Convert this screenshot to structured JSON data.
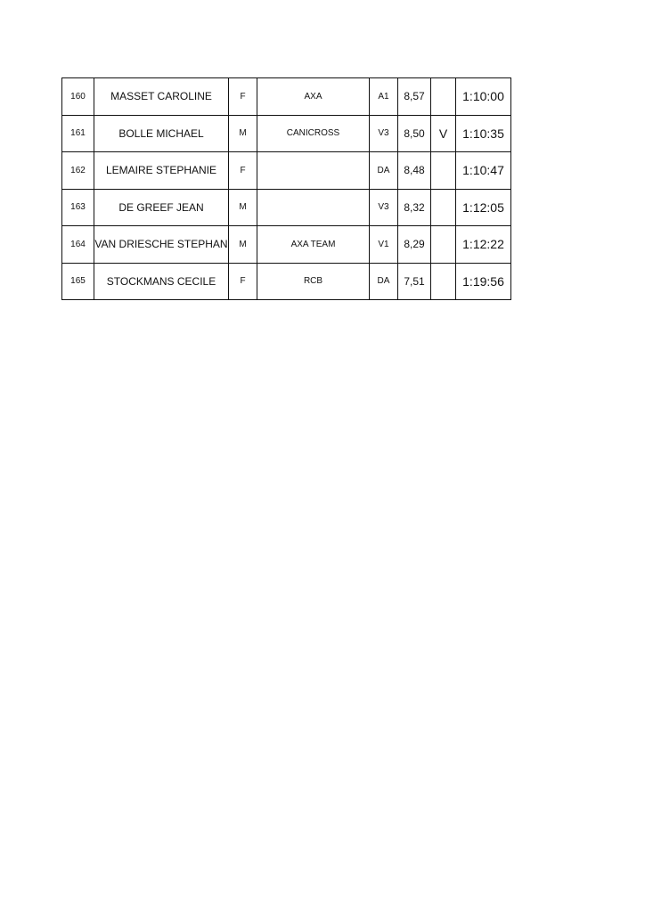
{
  "results": [
    {
      "bib": "160",
      "name": "MASSET CAROLINE",
      "sex": "F",
      "club": "AXA",
      "category": "A1",
      "speed": "8,57",
      "mark": "",
      "time": "1:10:00"
    },
    {
      "bib": "161",
      "name": "BOLLE MICHAEL",
      "sex": "M",
      "club": "CANICROSS",
      "category": "V3",
      "speed": "8,50",
      "mark": "V",
      "time": "1:10:35"
    },
    {
      "bib": "162",
      "name": "LEMAIRE STEPHANIE",
      "sex": "F",
      "club": "",
      "category": "DA",
      "speed": "8,48",
      "mark": "",
      "time": "1:10:47"
    },
    {
      "bib": "163",
      "name": "DE GREEF JEAN",
      "sex": "M",
      "club": "",
      "category": "V3",
      "speed": "8,32",
      "mark": "",
      "time": "1:12:05"
    },
    {
      "bib": "164",
      "name": "VAN DRIESCHE STEPHAN",
      "sex": "M",
      "club": "AXA TEAM",
      "category": "V1",
      "speed": "8,29",
      "mark": "",
      "time": "1:12:22"
    },
    {
      "bib": "165",
      "name": "STOCKMANS CECILE",
      "sex": "F",
      "club": "RCB",
      "category": "DA",
      "speed": "7,51",
      "mark": "",
      "time": "1:19:56"
    }
  ]
}
